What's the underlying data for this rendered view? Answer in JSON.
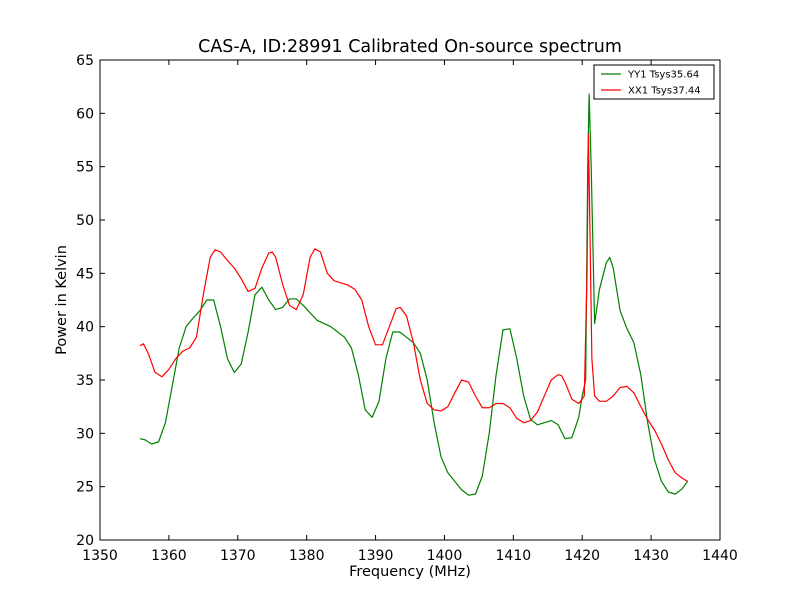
{
  "chart_data": {
    "type": "line",
    "title": "CAS-A, ID:28991 Calibrated On-source spectrum",
    "xlabel": "Frequency (MHz)",
    "ylabel": "Power in Kelvin",
    "xlim": [
      1350,
      1440
    ],
    "ylim": [
      20,
      65
    ],
    "xticks": [
      1350,
      1360,
      1370,
      1380,
      1390,
      1400,
      1410,
      1420,
      1430,
      1440
    ],
    "yticks": [
      20,
      25,
      30,
      35,
      40,
      45,
      50,
      55,
      60,
      65
    ],
    "grid": false,
    "legend_position": "top-right",
    "series": [
      {
        "name": "YY1 Tsys35.64",
        "color": "#008000",
        "x": [
          1355.8,
          1356.5,
          1357.5,
          1358.5,
          1359.5,
          1360.5,
          1361.5,
          1362.5,
          1363.5,
          1364.5,
          1365.5,
          1366.5,
          1367.5,
          1368.5,
          1369.5,
          1370.5,
          1371.5,
          1372.5,
          1373.5,
          1374.5,
          1375.5,
          1376.5,
          1377.5,
          1378.5,
          1379.5,
          1380.5,
          1381.5,
          1382.5,
          1383.5,
          1384.5,
          1385.5,
          1386.5,
          1387.5,
          1388.5,
          1389.5,
          1390.5,
          1391.5,
          1392.5,
          1393.5,
          1394.5,
          1395.5,
          1396.5,
          1397.5,
          1398.5,
          1399.5,
          1400.5,
          1401.5,
          1402.5,
          1403.5,
          1404.5,
          1405.5,
          1406.5,
          1407.5,
          1408.5,
          1409.5,
          1410.5,
          1411.5,
          1412.5,
          1413.5,
          1414.5,
          1415.5,
          1416.5,
          1417.5,
          1418.5,
          1419.5,
          1420.0,
          1420.5,
          1420.8,
          1421.0,
          1421.3,
          1421.8,
          1422.5,
          1423.5,
          1424.0,
          1424.5,
          1425.5,
          1426.5,
          1427.5,
          1428.5,
          1429.5,
          1430.5,
          1431.5,
          1432.5,
          1433.5,
          1434.5,
          1435.3
        ],
        "values": [
          29.5,
          29.4,
          29.0,
          29.2,
          31.0,
          34.5,
          38.0,
          40.0,
          40.8,
          41.5,
          42.5,
          42.5,
          40.0,
          37.0,
          35.7,
          36.5,
          39.5,
          43.0,
          43.7,
          42.5,
          41.6,
          41.8,
          42.6,
          42.6,
          42.0,
          41.3,
          40.6,
          40.3,
          40.0,
          39.5,
          39.0,
          38.0,
          35.5,
          32.2,
          31.5,
          33.0,
          37.0,
          39.5,
          39.5,
          39.0,
          38.5,
          37.5,
          35.0,
          31.0,
          27.8,
          26.3,
          25.5,
          24.7,
          24.2,
          24.3,
          26.0,
          30.0,
          35.5,
          39.7,
          39.8,
          37.0,
          33.5,
          31.3,
          30.8,
          31.0,
          31.2,
          30.8,
          29.5,
          29.6,
          31.5,
          33.5,
          35.0,
          55.0,
          61.8,
          55.0,
          40.3,
          43.5,
          46.0,
          46.5,
          45.5,
          41.5,
          39.8,
          38.5,
          35.5,
          31.0,
          27.5,
          25.5,
          24.5,
          24.3,
          24.8,
          25.5
        ]
      },
      {
        "name": "XX1 Tsys37.44",
        "color": "#ff0000",
        "x": [
          1355.8,
          1356.3,
          1357.0,
          1358.0,
          1359.0,
          1360.0,
          1361.0,
          1362.0,
          1363.0,
          1364.0,
          1365.0,
          1366.0,
          1366.7,
          1367.5,
          1368.5,
          1369.5,
          1370.5,
          1371.5,
          1372.5,
          1373.5,
          1374.5,
          1375.0,
          1375.5,
          1376.5,
          1377.5,
          1378.5,
          1379.5,
          1380.5,
          1381.2,
          1382.0,
          1383.0,
          1384.0,
          1385.0,
          1386.0,
          1387.0,
          1388.0,
          1389.0,
          1390.0,
          1391.0,
          1392.0,
          1393.0,
          1393.6,
          1394.5,
          1395.5,
          1396.5,
          1397.5,
          1398.5,
          1399.5,
          1400.5,
          1401.5,
          1402.5,
          1403.5,
          1404.5,
          1405.5,
          1406.5,
          1407.5,
          1408.5,
          1409.5,
          1410.5,
          1411.5,
          1412.5,
          1413.5,
          1414.5,
          1415.5,
          1416.5,
          1417.0,
          1417.5,
          1418.5,
          1419.5,
          1420.3,
          1420.7,
          1420.9,
          1421.1,
          1421.4,
          1421.8,
          1422.5,
          1423.5,
          1424.5,
          1425.5,
          1426.5,
          1427.5,
          1428.5,
          1429.5,
          1430.5,
          1431.5,
          1432.5,
          1433.5,
          1434.5,
          1435.3
        ],
        "values": [
          38.2,
          38.4,
          37.5,
          35.7,
          35.3,
          36.0,
          37.0,
          37.7,
          38.0,
          39.0,
          43.0,
          46.5,
          47.2,
          47.0,
          46.2,
          45.5,
          44.5,
          43.3,
          43.6,
          45.5,
          46.9,
          47.0,
          46.5,
          44.0,
          42.0,
          41.6,
          43.0,
          46.5,
          47.3,
          47.0,
          45.0,
          44.3,
          44.1,
          43.9,
          43.5,
          42.5,
          40.0,
          38.3,
          38.3,
          40.0,
          41.7,
          41.8,
          41.0,
          38.5,
          35.0,
          32.8,
          32.2,
          32.1,
          32.5,
          33.8,
          35.0,
          34.8,
          33.5,
          32.4,
          32.4,
          32.8,
          32.8,
          32.4,
          31.4,
          31.0,
          31.2,
          32.0,
          33.5,
          35.0,
          35.5,
          35.4,
          34.8,
          33.2,
          32.8,
          33.5,
          45.0,
          58.0,
          50.0,
          37.0,
          33.5,
          33.0,
          33.0,
          33.5,
          34.3,
          34.4,
          33.8,
          32.5,
          31.3,
          30.3,
          29.0,
          27.5,
          26.3,
          25.8,
          25.5
        ]
      }
    ]
  }
}
